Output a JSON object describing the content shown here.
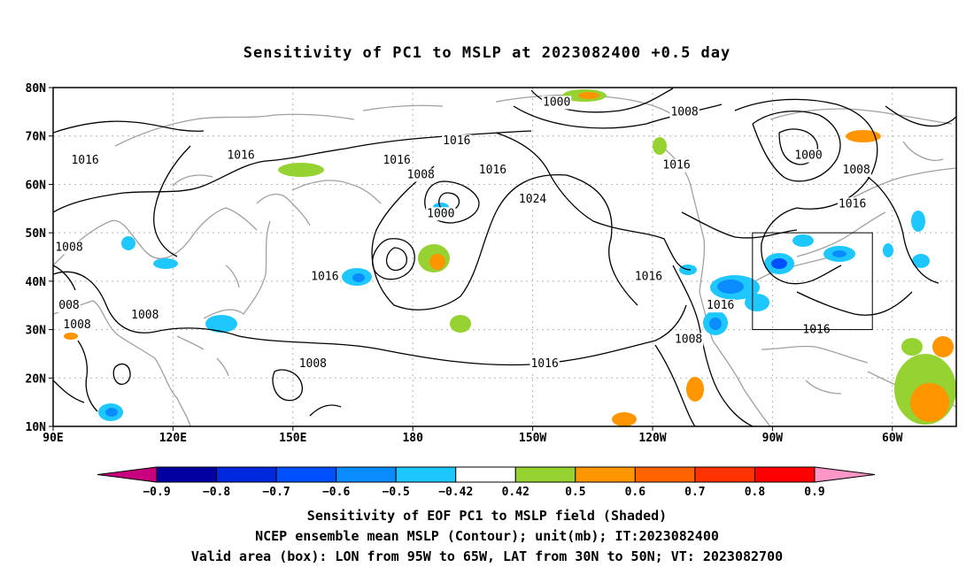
{
  "title": "Sensitivity of PC1 to MSLP at 2023082400 +0.5 day",
  "lon_ticks": [
    {
      "lon": 90,
      "label": "90E"
    },
    {
      "lon": 120,
      "label": "120E"
    },
    {
      "lon": 150,
      "label": "150E"
    },
    {
      "lon": 180,
      "label": "180"
    },
    {
      "lon": 210,
      "label": "150W"
    },
    {
      "lon": 240,
      "label": "120W"
    },
    {
      "lon": 270,
      "label": "90W"
    },
    {
      "lon": 300,
      "label": "60W"
    }
  ],
  "lat_ticks": [
    {
      "lat": 10,
      "label": "10N"
    },
    {
      "lat": 20,
      "label": "20N"
    },
    {
      "lat": 30,
      "label": "30N"
    },
    {
      "lat": 40,
      "label": "40N"
    },
    {
      "lat": 50,
      "label": "50N"
    },
    {
      "lat": 60,
      "label": "60N"
    },
    {
      "lat": 70,
      "label": "70N"
    },
    {
      "lat": 80,
      "label": "80N"
    }
  ],
  "domain": {
    "lon_range": [
      90,
      316
    ],
    "lat_range": [
      10,
      80
    ]
  },
  "valid_box": {
    "lon_w": 265,
    "lon_e": 295,
    "lat_s": 30,
    "lat_n": 50
  },
  "contour_labels": [
    {
      "text": "1000",
      "lon": 216,
      "lat": 77
    },
    {
      "text": "1008",
      "lon": 248,
      "lat": 75
    },
    {
      "text": "1016",
      "lon": 191,
      "lat": 69
    },
    {
      "text": "1016",
      "lon": 98,
      "lat": 65
    },
    {
      "text": "1016",
      "lon": 137,
      "lat": 66
    },
    {
      "text": "1016",
      "lon": 176,
      "lat": 65
    },
    {
      "text": "1008",
      "lon": 182,
      "lat": 62
    },
    {
      "text": "1016",
      "lon": 200,
      "lat": 63
    },
    {
      "text": "1016",
      "lon": 246,
      "lat": 64
    },
    {
      "text": "1000",
      "lon": 279,
      "lat": 66
    },
    {
      "text": "1008",
      "lon": 291,
      "lat": 63
    },
    {
      "text": "1024",
      "lon": 210,
      "lat": 57
    },
    {
      "text": "1000",
      "lon": 187,
      "lat": 54
    },
    {
      "text": "1016",
      "lon": 290,
      "lat": 56
    },
    {
      "text": "1008",
      "lon": 90,
      "lat": 47
    },
    {
      "text": "1016",
      "lon": 158,
      "lat": 41
    },
    {
      "text": "1016",
      "lon": 239,
      "lat": 41
    },
    {
      "text": "008",
      "lon": 90,
      "lat": 35
    },
    {
      "text": "1016",
      "lon": 257,
      "lat": 35
    },
    {
      "text": "1008",
      "lon": 96,
      "lat": 31
    },
    {
      "text": "1008",
      "lon": 113,
      "lat": 33
    },
    {
      "text": "1016",
      "lon": 281,
      "lat": 30
    },
    {
      "text": "1008",
      "lon": 249,
      "lat": 28
    },
    {
      "text": "1008",
      "lon": 155,
      "lat": 23
    },
    {
      "text": "1016",
      "lon": 213,
      "lat": 23
    }
  ],
  "colorbar": {
    "labels": [
      "-0.9",
      "-0.8",
      "-0.7",
      "-0.6",
      "-0.5",
      "-0.42",
      "0.42",
      "0.5",
      "0.6",
      "0.7",
      "0.8",
      "0.9"
    ],
    "colors": [
      "#0000a0",
      "#0028dc",
      "#0050ff",
      "#0a8cff",
      "#1ec8ff",
      "#ffffff",
      "#96d232",
      "#ff9600",
      "#ff6400",
      "#ff3200",
      "#ff0000"
    ],
    "left_arrow_color": "#c8007d",
    "right_arrow_color": "#ff96c8"
  },
  "colors": {
    "contour": "#000000",
    "coast": "#a0a0a0",
    "grid": "#b4b4b4"
  },
  "footer": {
    "line1": "Sensitivity of EOF PC1 to MSLP field (Shaded)",
    "line2": "NCEP ensemble mean MSLP (Contour); unit(mb); IT:2023082400",
    "line3": "Valid area (box): LON from 95W to 65W, LAT from 30N to 50N; VT: 2023082700"
  }
}
